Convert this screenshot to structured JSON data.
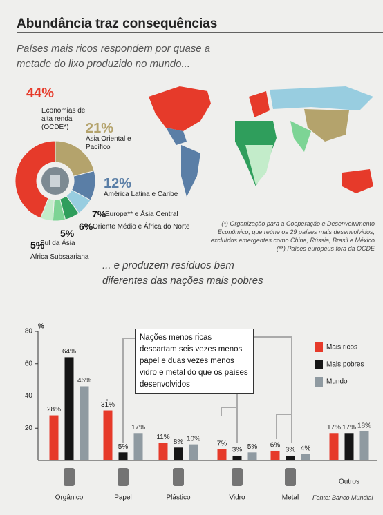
{
  "title": "Abundância traz consequências",
  "notes": [
    "(*) Organização para a Cooperação e Desenvolvimento Econômico, que reúne os 29 países mais desenvolvidos, excluídos emergentes como China, Rússia, Brasil e México",
    "(**) Países europeus fora da OCDE"
  ],
  "source": "Fonte: Banco Mundial",
  "chart_data": [
    {
      "type": "pie",
      "title": "Países mais ricos respondem por quase a metade do lixo produzido no mundo...",
      "categories": [
        "Economias de alta renda (OCDE*)",
        "Ásia Oriental e Pacífico",
        "América Latina e Caribe",
        "Europa** e Ásia Central",
        "Oriente Médio e África do Norte",
        "Sul da Ásia",
        "África Subsaariana"
      ],
      "values": [
        44,
        21,
        12,
        7,
        6,
        5,
        5
      ],
      "value_labels": [
        "44%",
        "21%",
        "12%",
        "7%",
        "6%",
        "5%",
        "5%"
      ],
      "colors": [
        "#e63a2a",
        "#b4a36c",
        "#5a7ea6",
        "#98cde0",
        "#2f9e5c",
        "#7dd495",
        "#c3ecca"
      ]
    },
    {
      "type": "bar",
      "title": "... e produzem resíduos bem diferentes das nações mais pobres",
      "y_label": "%",
      "annotation": "Nações menos ricas descartam seis vezes menos papel e duas vezes menos vidro e metal do que os países desenvolvidos",
      "categories": [
        "Orgânico",
        "Papel",
        "Plástico",
        "Vidro",
        "Metal",
        "Outros"
      ],
      "series": [
        {
          "name": "Mais ricos",
          "color": "#e63a2a",
          "values": [
            28,
            31,
            11,
            7,
            6,
            17
          ],
          "value_labels": [
            "28%",
            "31%",
            "11%",
            "7%",
            "6%",
            "17%"
          ]
        },
        {
          "name": "Mais pobres",
          "color": "#151515",
          "values": [
            64,
            5,
            8,
            3,
            3,
            17
          ],
          "value_labels": [
            "64%",
            "5%",
            "8%",
            "3%",
            "3%",
            "17%"
          ]
        },
        {
          "name": "Mundo",
          "color": "#8f9aa1",
          "values": [
            46,
            17,
            10,
            5,
            4,
            18
          ],
          "value_labels": [
            "46%",
            "17%",
            "10%",
            "5%",
            "4%",
            "18%"
          ]
        }
      ],
      "ylim": [
        0,
        80
      ],
      "yticks": [
        20,
        40,
        60,
        80
      ],
      "legend": "right"
    }
  ]
}
